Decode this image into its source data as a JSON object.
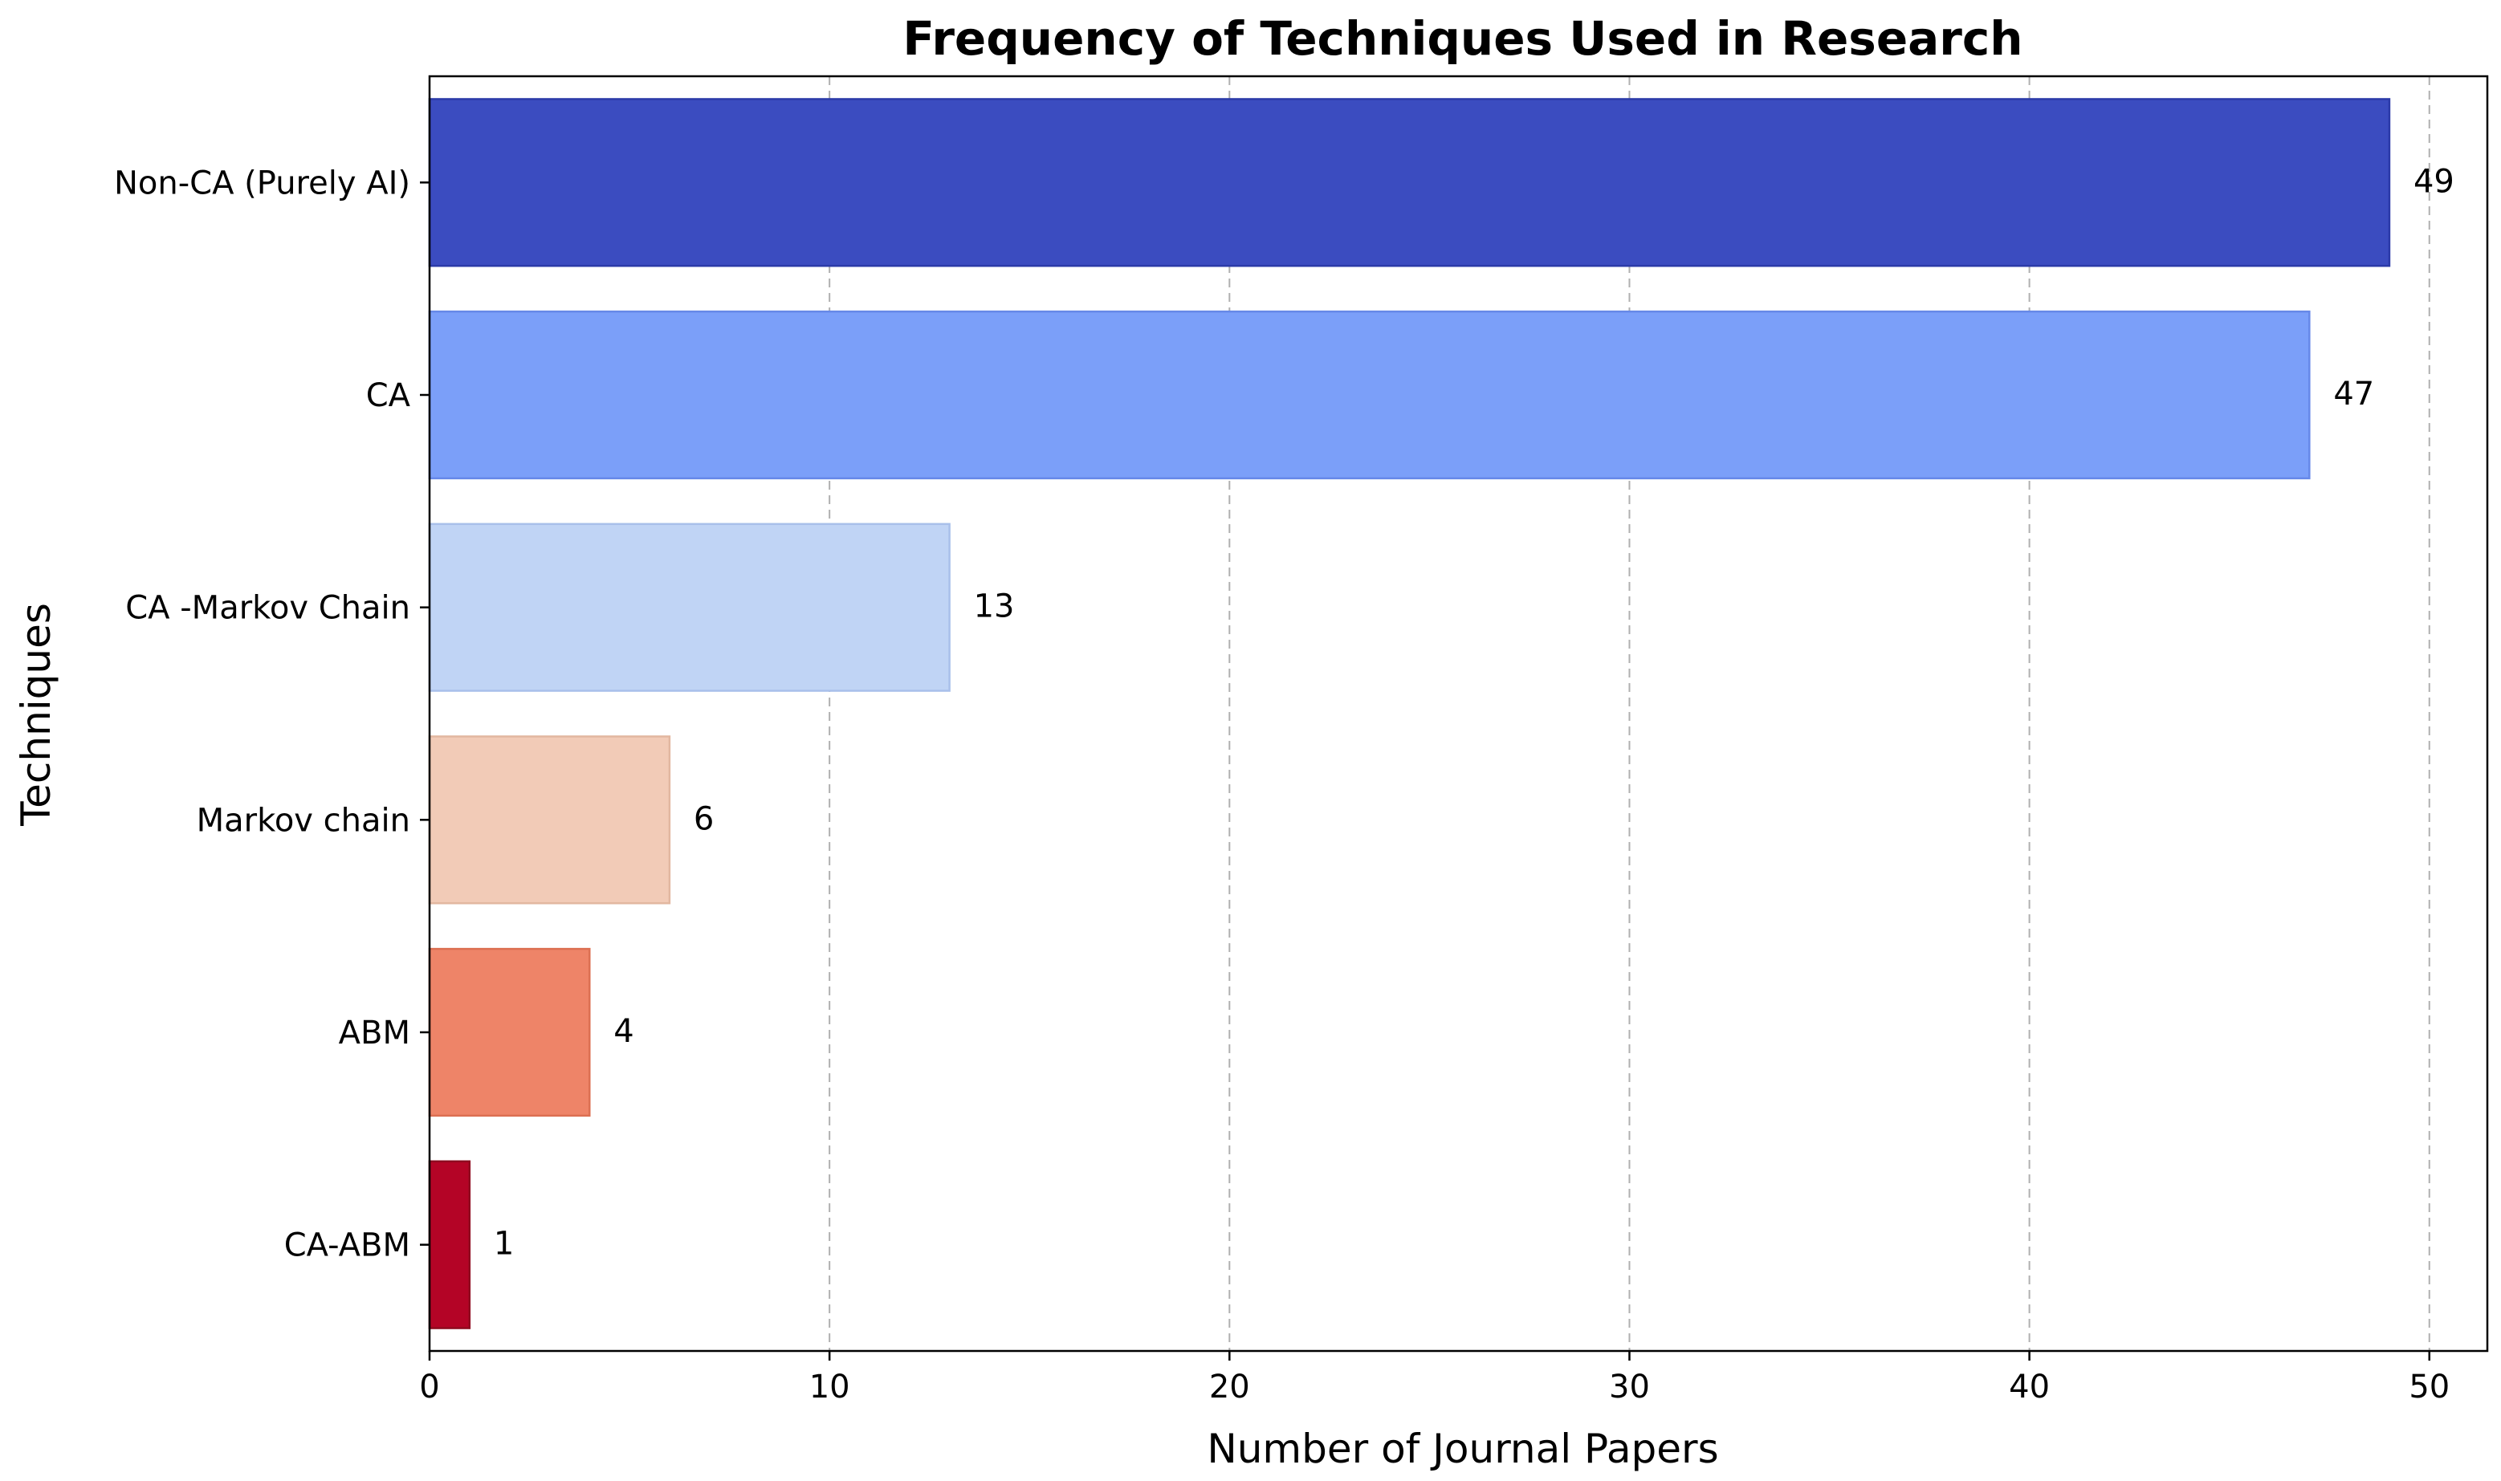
{
  "chart_data": {
    "type": "bar",
    "orientation": "horizontal",
    "title": "Frequency of Techniques Used in Research",
    "xlabel": "Number of Journal Papers",
    "ylabel": "Techniques",
    "categories": [
      "Non-CA (Purely AI)",
      "CA",
      "CA -Markov Chain",
      "Markov chain",
      "ABM",
      "CA-ABM"
    ],
    "values": [
      49,
      47,
      13,
      6,
      4,
      1
    ],
    "value_labels": [
      "49",
      "47",
      "13",
      "6",
      "4",
      "1"
    ],
    "colors": [
      "#3b4cc0",
      "#7b9ff9",
      "#c0d4f5",
      "#f2cbb7",
      "#ee8468",
      "#b40426"
    ],
    "edge_colors": [
      "#2b3aa8",
      "#6688e8",
      "#a9c0ea",
      "#e2b7a0",
      "#dc6f52",
      "#8f0a1f"
    ],
    "xlim": [
      0,
      51.45
    ],
    "xticks": [
      0,
      10,
      20,
      30,
      40,
      50
    ],
    "xtick_labels": [
      "0",
      "10",
      "20",
      "30",
      "40",
      "50"
    ],
    "grid": "x-dashed",
    "legend": "none"
  }
}
